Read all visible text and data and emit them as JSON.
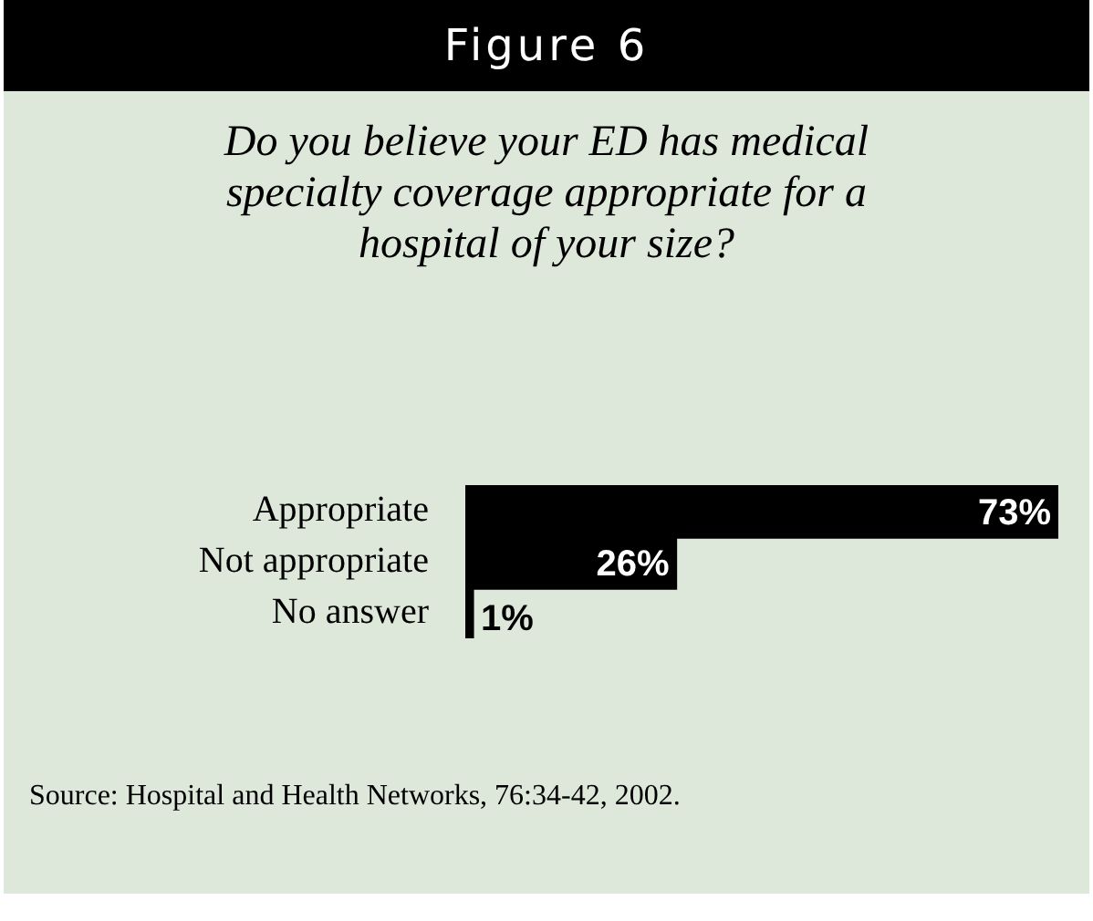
{
  "chart_data": {
    "type": "bar",
    "orientation": "horizontal",
    "title": "Figure 6",
    "subtitle": "Do you believe your ED has medical specialty coverage appropriate for a hospital of your size?",
    "categories": [
      "Appropriate",
      "Not appropriate",
      "No answer"
    ],
    "values": [
      73,
      26,
      1
    ],
    "color": "#000000",
    "value_labels": [
      "73%",
      "26%",
      "1%"
    ],
    "annotations": [
      "Source: Hospital and Health Networks, 76:34-42, 2002."
    ],
    "legend": false
  }
}
